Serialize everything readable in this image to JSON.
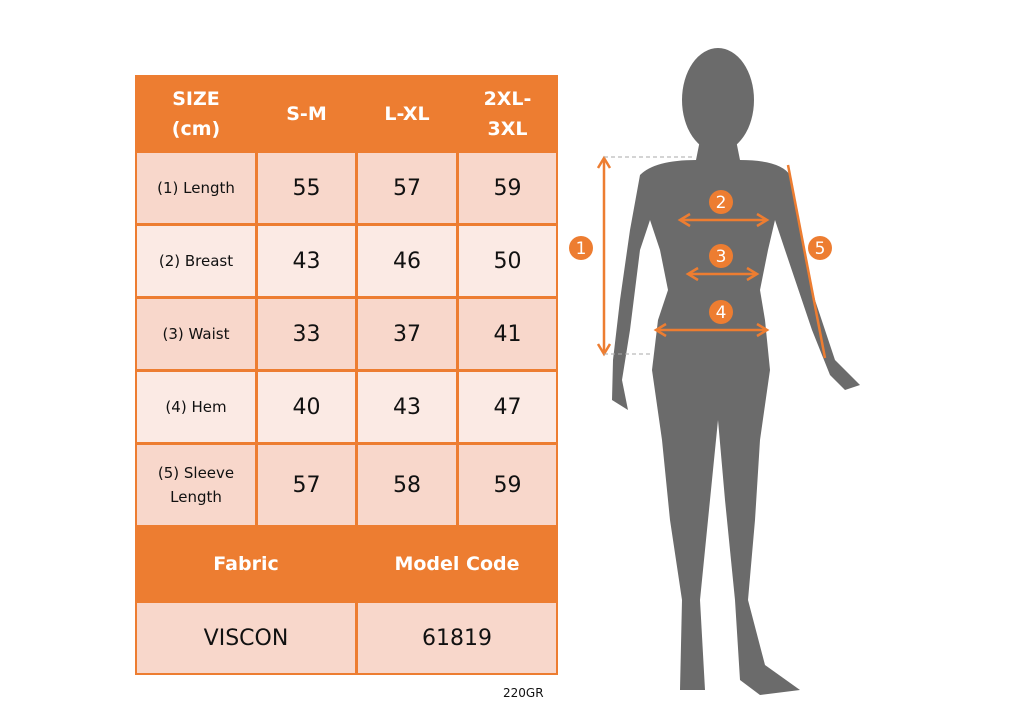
{
  "table": {
    "header": [
      "SIZE\n(cm)",
      "S-M",
      "L-XL",
      "2XL-\n3XL"
    ],
    "rows": [
      {
        "label": "(1) Length",
        "values": [
          "55",
          "57",
          "59"
        ]
      },
      {
        "label": "(2) Breast",
        "values": [
          "43",
          "46",
          "50"
        ]
      },
      {
        "label": "(3) Waist",
        "values": [
          "33",
          "37",
          "41"
        ]
      },
      {
        "label": "(4) Hem",
        "values": [
          "40",
          "43",
          "47"
        ]
      },
      {
        "label": "(5) Sleeve\nLength",
        "values": [
          "57",
          "58",
          "59"
        ]
      }
    ],
    "fabric_label": "Fabric",
    "model_code_label": "Model Code",
    "fabric_value": "VISCON",
    "model_code_value": "61819"
  },
  "footnote": "220GR",
  "figure": {
    "markers": [
      "1",
      "2",
      "3",
      "4",
      "5"
    ]
  },
  "colors": {
    "accent": "#ed7d31",
    "row_dark": "#f8d7cb",
    "row_light": "#fbeae4",
    "silhouette": "#6b6b6b"
  }
}
